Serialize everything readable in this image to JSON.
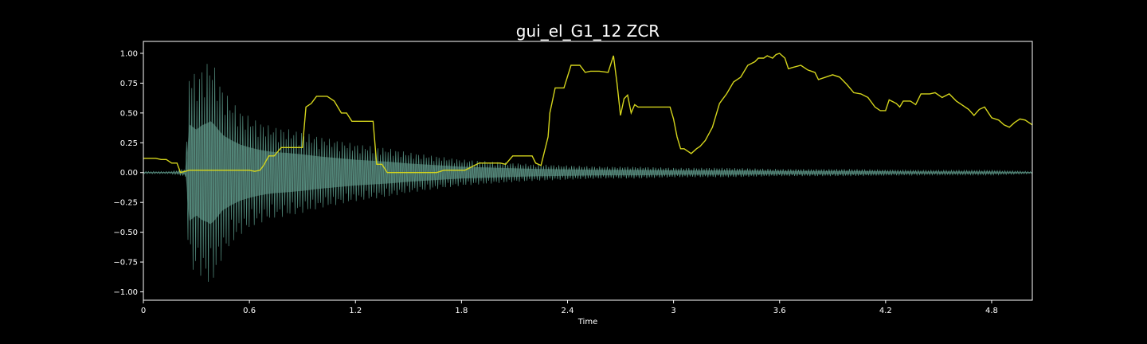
{
  "chart_data": {
    "type": "line",
    "title": "gui_el_G1_12 ZCR",
    "xlabel": "Time",
    "ylabel": "",
    "xlim": [
      0,
      5.03
    ],
    "ylim": [
      -1.07,
      1.1
    ],
    "x_ticks": [
      0,
      0.6,
      1.2,
      1.8,
      2.4,
      3,
      3.6,
      4.2,
      4.8
    ],
    "x_tick_labels": [
      "0",
      "0.6",
      "1.2",
      "1.8",
      "2.4",
      "3",
      "3.6",
      "4.2",
      "4.8"
    ],
    "y_ticks": [
      1.0,
      0.75,
      0.5,
      0.25,
      0.0,
      -0.25,
      -0.5,
      -0.75,
      -1.0
    ],
    "y_tick_labels": [
      "1.00",
      "0.75",
      "0.50",
      "0.25",
      "0.00",
      "−0.25",
      "−0.50",
      "−0.75",
      "−1.00"
    ],
    "grid": false,
    "background": "#000000",
    "axes_color": "#ffffff",
    "series": [
      {
        "kind": "waveform-envelope",
        "color": "#5e9e8e",
        "x": [
          0,
          0.05,
          0.1,
          0.15,
          0.2,
          0.24,
          0.26,
          0.28,
          0.3,
          0.33,
          0.36,
          0.38,
          0.4,
          0.45,
          0.5,
          0.55,
          0.6,
          0.65,
          0.7,
          0.75,
          0.8,
          0.9,
          1.0,
          1.1,
          1.2,
          1.3,
          1.4,
          1.5,
          1.6,
          1.7,
          1.8,
          1.9,
          2.0,
          2.2,
          2.4,
          2.6,
          2.8,
          3.0,
          3.3,
          3.6,
          4.0,
          4.4,
          4.8,
          5.03
        ],
        "amplitude": [
          0.01,
          0.01,
          0.01,
          0.01,
          0.02,
          0.04,
          0.9,
          0.85,
          0.8,
          0.88,
          0.92,
          0.96,
          0.9,
          0.7,
          0.6,
          0.52,
          0.47,
          0.43,
          0.4,
          0.38,
          0.37,
          0.34,
          0.3,
          0.27,
          0.24,
          0.22,
          0.2,
          0.17,
          0.15,
          0.13,
          0.11,
          0.1,
          0.09,
          0.07,
          0.06,
          0.05,
          0.05,
          0.04,
          0.04,
          0.03,
          0.03,
          0.02,
          0.02,
          0.01
        ]
      },
      {
        "kind": "zcr",
        "color": "#d4d41c",
        "x": [
          0,
          0.07,
          0.1,
          0.13,
          0.16,
          0.19,
          0.21,
          0.26,
          0.3,
          0.6,
          0.63,
          0.66,
          0.68,
          0.71,
          0.74,
          0.78,
          0.81,
          0.9,
          0.92,
          0.95,
          0.98,
          1.04,
          1.08,
          1.12,
          1.15,
          1.18,
          1.22,
          1.3,
          1.32,
          1.35,
          1.38,
          1.44,
          1.66,
          1.7,
          1.82,
          1.86,
          1.9,
          2.02,
          2.05,
          2.09,
          2.15,
          2.2,
          2.22,
          2.25,
          2.29,
          2.3,
          2.33,
          2.38,
          2.42,
          2.47,
          2.5,
          2.53,
          2.58,
          2.63,
          2.66,
          2.68,
          2.7,
          2.72,
          2.74,
          2.76,
          2.78,
          2.8,
          2.83,
          2.86,
          2.93,
          2.98,
          3.0,
          3.02,
          3.04,
          3.06,
          3.1,
          3.13,
          3.15,
          3.18,
          3.22,
          3.26,
          3.28,
          3.3,
          3.34,
          3.38,
          3.42,
          3.46,
          3.48,
          3.51,
          3.53,
          3.56,
          3.58,
          3.6,
          3.63,
          3.65,
          3.67,
          3.72,
          3.76,
          3.8,
          3.82,
          3.86,
          3.9,
          3.94,
          3.98,
          4.02,
          4.06,
          4.1,
          4.14,
          4.17,
          4.2,
          4.22,
          4.26,
          4.28,
          4.3,
          4.34,
          4.37,
          4.4,
          4.45,
          4.48,
          4.52,
          4.56,
          4.6,
          4.63,
          4.67,
          4.7,
          4.73,
          4.76,
          4.8,
          4.84,
          4.87,
          4.9,
          4.93,
          4.96,
          4.99,
          5.03
        ],
        "y": [
          0.12,
          0.12,
          0.11,
          0.11,
          0.08,
          0.08,
          0.0,
          0.02,
          0.02,
          0.02,
          0.01,
          0.02,
          0.06,
          0.14,
          0.14,
          0.21,
          0.21,
          0.21,
          0.55,
          0.58,
          0.64,
          0.64,
          0.6,
          0.5,
          0.5,
          0.43,
          0.43,
          0.43,
          0.07,
          0.07,
          0.0,
          0.0,
          0.0,
          0.02,
          0.02,
          0.05,
          0.08,
          0.08,
          0.07,
          0.14,
          0.14,
          0.14,
          0.08,
          0.06,
          0.3,
          0.5,
          0.71,
          0.71,
          0.9,
          0.9,
          0.84,
          0.85,
          0.85,
          0.84,
          0.98,
          0.75,
          0.48,
          0.62,
          0.65,
          0.5,
          0.57,
          0.55,
          0.55,
          0.55,
          0.55,
          0.55,
          0.45,
          0.3,
          0.2,
          0.2,
          0.16,
          0.2,
          0.22,
          0.27,
          0.38,
          0.58,
          0.62,
          0.66,
          0.76,
          0.8,
          0.9,
          0.93,
          0.96,
          0.96,
          0.98,
          0.96,
          0.99,
          1.0,
          0.96,
          0.87,
          0.88,
          0.9,
          0.86,
          0.84,
          0.78,
          0.8,
          0.82,
          0.8,
          0.74,
          0.67,
          0.66,
          0.63,
          0.55,
          0.52,
          0.52,
          0.61,
          0.58,
          0.55,
          0.6,
          0.6,
          0.57,
          0.66,
          0.66,
          0.67,
          0.63,
          0.66,
          0.6,
          0.57,
          0.53,
          0.48,
          0.53,
          0.55,
          0.46,
          0.44,
          0.4,
          0.38,
          0.42,
          0.45,
          0.44,
          0.4
        ]
      }
    ]
  }
}
